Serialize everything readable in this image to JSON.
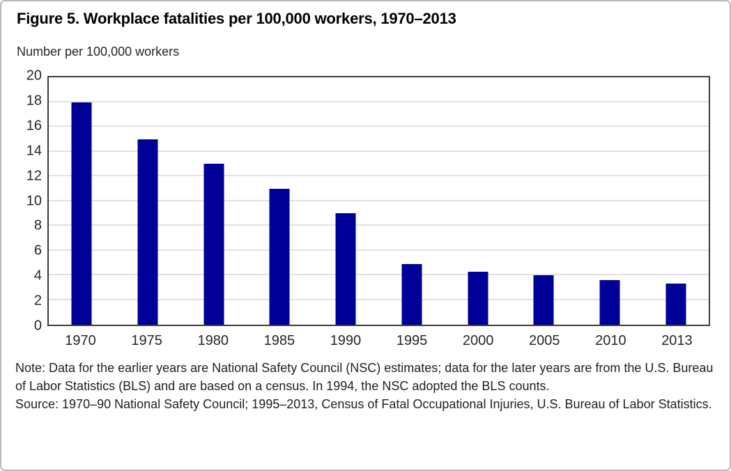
{
  "figure": {
    "title": "Figure 5. Workplace fatalities per 100,000 workers, 1970–2013",
    "axis_title": "Number per 100,000 workers",
    "note": "Note: Data for the earlier years are National Safety Council (NSC) estimates; data for the later years are from the U.S. Bureau of Labor Statistics (BLS) and are based on a census. In 1994, the NSC adopted the BLS counts.",
    "source": "Source: 1970–90 National Safety Council; 1995–2013, Census of Fatal Occupational Injuries, U.S. Bureau of Labor Statistics."
  },
  "chart_data": {
    "type": "bar",
    "title": "Figure 5. Workplace fatalities per 100,000 workers, 1970–2013",
    "xlabel": "",
    "ylabel": "Number per 100,000 workers",
    "categories": [
      "1970",
      "1975",
      "1980",
      "1985",
      "1990",
      "1995",
      "2000",
      "2005",
      "2010",
      "2013"
    ],
    "values": [
      18,
      15,
      13,
      11,
      9,
      4.9,
      4.3,
      4.0,
      3.6,
      3.3
    ],
    "ylim": [
      0,
      20
    ],
    "ytick_step": 2,
    "grid": "horizontal",
    "legend_position": "none",
    "bar_color": "#000099"
  },
  "colors": {
    "bar": "#000099",
    "gridline": "#e2e2e2",
    "plot_border": "#3a3a3a",
    "outer_border": "#b9b9b9",
    "text": "#262626"
  }
}
